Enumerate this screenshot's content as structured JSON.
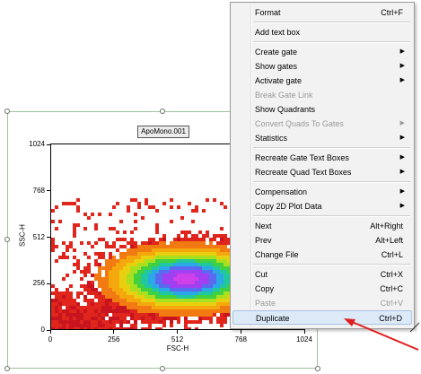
{
  "plot": {
    "title": "ApoMono.001",
    "x_axis_label": "FSC-H",
    "y_axis_label": "SSC-H",
    "x_ticks": [
      "0",
      "256",
      "512",
      "768",
      "1024"
    ],
    "y_ticks": [
      "0",
      "256",
      "512",
      "768",
      "1024"
    ]
  },
  "context_menu": {
    "items": [
      {
        "label": "Format",
        "shortcut": "Ctrl+F",
        "enabled": true,
        "submenu": false
      },
      {
        "separator": true
      },
      {
        "label": "Add text box",
        "shortcut": "",
        "enabled": true,
        "submenu": false
      },
      {
        "separator": true
      },
      {
        "label": "Create gate",
        "shortcut": "",
        "enabled": true,
        "submenu": true
      },
      {
        "label": "Show gates",
        "shortcut": "",
        "enabled": true,
        "submenu": true
      },
      {
        "label": "Activate gate",
        "shortcut": "",
        "enabled": true,
        "submenu": true
      },
      {
        "label": "Break Gate Link",
        "shortcut": "",
        "enabled": false,
        "submenu": false
      },
      {
        "label": "Show Quadrants",
        "shortcut": "",
        "enabled": true,
        "submenu": false
      },
      {
        "label": "Convert Quads To Gates",
        "shortcut": "",
        "enabled": false,
        "submenu": true
      },
      {
        "label": "Statistics",
        "shortcut": "",
        "enabled": true,
        "submenu": true
      },
      {
        "separator": true
      },
      {
        "label": "Recreate Gate Text Boxes",
        "shortcut": "",
        "enabled": true,
        "submenu": true
      },
      {
        "label": "Recreate Quad Text Boxes",
        "shortcut": "",
        "enabled": true,
        "submenu": true
      },
      {
        "separator": true
      },
      {
        "label": "Compensation",
        "shortcut": "",
        "enabled": true,
        "submenu": true
      },
      {
        "label": "Copy 2D Plot Data",
        "shortcut": "",
        "enabled": true,
        "submenu": true
      },
      {
        "separator": true
      },
      {
        "label": "Next",
        "shortcut": "Alt+Right",
        "enabled": true,
        "submenu": false
      },
      {
        "label": "Prev",
        "shortcut": "Alt+Left",
        "enabled": true,
        "submenu": false
      },
      {
        "label": "Change File",
        "shortcut": "Ctrl+L",
        "enabled": true,
        "submenu": false
      },
      {
        "separator": true
      },
      {
        "label": "Cut",
        "shortcut": "Ctrl+X",
        "enabled": true,
        "submenu": false
      },
      {
        "label": "Copy",
        "shortcut": "Ctrl+C",
        "enabled": true,
        "submenu": false
      },
      {
        "label": "Paste",
        "shortcut": "Ctrl+V",
        "enabled": false,
        "submenu": false
      },
      {
        "label": "Duplicate",
        "shortcut": "Ctrl+D",
        "enabled": true,
        "submenu": false,
        "highlighted": true
      }
    ]
  },
  "colors": {
    "highlight": "#dce9f7",
    "annotation_arrow": "#e02020",
    "selection_border": "#9ac49a"
  }
}
